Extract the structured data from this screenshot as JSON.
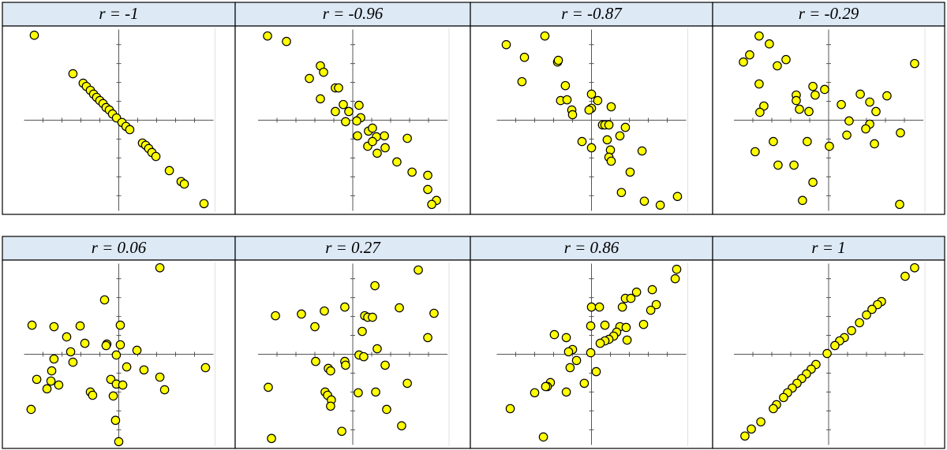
{
  "chart_data": [
    {
      "type": "scatter",
      "title": "r = -1",
      "color": "#ffff00",
      "xlim": [
        -5,
        5
      ],
      "ylim": [
        -4.8,
        4.8
      ],
      "xticks": [
        -4,
        -3,
        -2,
        -1,
        0,
        1,
        2,
        3,
        4
      ],
      "yticks": [
        -4,
        -3,
        -2,
        -1,
        0,
        1,
        2,
        3,
        4
      ],
      "x": [
        -4.46,
        -2.42,
        -1.88,
        -1.71,
        -1.5,
        -1.33,
        -1.17,
        -1,
        -0.83,
        -0.67,
        -0.5,
        -0.33,
        -0.12,
        0.17,
        0.38,
        0.58,
        1.25,
        1.42,
        1.58,
        1.75,
        1.96,
        2.67,
        3.29,
        3.46,
        4.5
      ],
      "y": [
        4.5,
        2.46,
        1.96,
        1.79,
        1.58,
        1.38,
        1.21,
        1.04,
        0.88,
        0.67,
        0.54,
        0.33,
        0.12,
        -0.12,
        -0.33,
        -0.5,
        -1.21,
        -1.33,
        -1.5,
        -1.71,
        -1.92,
        -2.67,
        -3.25,
        -3.38,
        -4.42
      ]
    },
    {
      "type": "scatter",
      "title": "r = -0.96",
      "color": "#ffff00",
      "xlim": [
        -5,
        5
      ],
      "ylim": [
        -4.8,
        4.8
      ],
      "xticks": [
        -4,
        -3,
        -2,
        -1,
        0,
        1,
        2,
        3,
        4
      ],
      "yticks": [
        -4,
        -3,
        -2,
        -1,
        0,
        1,
        2,
        3,
        4
      ],
      "x": [
        -4.5,
        -3.5,
        -2.29,
        -1.71,
        -1.54,
        -0.92,
        -0.75,
        -1.71,
        -0.5,
        -0.92,
        -0.21,
        0.33,
        0.42,
        -0.38,
        0.21,
        0.83,
        1.04,
        1.25,
        1.67,
        0.79,
        1.71,
        1.29,
        0.25,
        2.88,
        2.33,
        3.13,
        3.96,
        3.96,
        4.42,
        4.17,
        1.04
      ],
      "y": [
        4.46,
        4.17,
        2.21,
        2.88,
        2.54,
        1.71,
        1.71,
        1.13,
        0.83,
        0.46,
        0.46,
        0.79,
        0.13,
        -0.08,
        -0.04,
        -0.58,
        -0.42,
        -0.88,
        -0.83,
        -1.38,
        -1.46,
        -1.75,
        -0.83,
        -0.96,
        -2.21,
        -2.75,
        -2.92,
        -3.67,
        -4.25,
        -4.46,
        -1.13
      ]
    },
    {
      "type": "scatter",
      "title": "r = -0.87",
      "color": "#ffff00",
      "xlim": [
        -5,
        5
      ],
      "ylim": [
        -4.8,
        4.8
      ],
      "xticks": [
        -4,
        -3,
        -2,
        -1,
        0,
        1,
        2,
        3,
        4
      ],
      "yticks": [
        -4,
        -3,
        -2,
        -1,
        0,
        1,
        2,
        3,
        4
      ],
      "x": [
        -4.5,
        -3.54,
        -2.46,
        -1.79,
        -1.75,
        -3.67,
        -1.38,
        -1.63,
        -1.29,
        -1.04,
        -1,
        0,
        0.33,
        0,
        1.04,
        0.58,
        0.71,
        0.92,
        1.79,
        1.5,
        0.83,
        -0.5,
        0,
        1,
        0.92,
        1.04,
        2.67,
        2.04,
        1.58,
        2.79,
        3.63,
        4.54,
        -0.13
      ],
      "y": [
        4,
        3.33,
        4.46,
        3.08,
        3.17,
        2.04,
        1.83,
        1.04,
        1.08,
        0.54,
        0.29,
        1.38,
        1.04,
        0.63,
        0.71,
        -0.25,
        -0.25,
        -0.25,
        -0.38,
        -0.83,
        -1.04,
        -1.13,
        -1.46,
        -1.58,
        -1.96,
        -2.17,
        -1.63,
        -2.75,
        -3.83,
        -4.29,
        -4.5,
        -4.04,
        0.54
      ]
    },
    {
      "type": "scatter",
      "title": "r = -0.29",
      "color": "#ffff00",
      "xlim": [
        -5,
        5
      ],
      "ylim": [
        -4.8,
        4.8
      ],
      "xticks": [
        -4,
        -3,
        -2,
        -1,
        0,
        1,
        2,
        3,
        4
      ],
      "yticks": [
        -4,
        -3,
        -2,
        -1,
        0,
        1,
        2,
        3,
        4
      ],
      "x": [
        -3.67,
        -3.13,
        -4.17,
        -4.5,
        -2.25,
        -2.71,
        -3.67,
        -0.83,
        -0.21,
        -1.71,
        -1.71,
        -0.71,
        -3.42,
        -3.63,
        -1.54,
        -1.04,
        0.67,
        1.67,
        2.17,
        3.08,
        4.54,
        2.5,
        1.08,
        2.17,
        1.96,
        0.96,
        -1.13,
        0.04,
        -2.92,
        -3.88,
        2.42,
        -2.67,
        -1.83,
        -0.83,
        -1.38,
        3.79,
        3.75
      ],
      "y": [
        4.46,
        4.04,
        3.46,
        3.08,
        3.21,
        2.88,
        1.92,
        1.79,
        1.63,
        1.33,
        1.04,
        1.33,
        0.75,
        0.42,
        0.58,
        0.46,
        0.83,
        1.38,
        0.96,
        1.29,
        3,
        0.46,
        -0.04,
        -0.21,
        -0.46,
        -0.79,
        -1.13,
        -1.38,
        -1.13,
        -1.67,
        -1.25,
        -2.38,
        -2.38,
        -3.29,
        -4.25,
        -0.67,
        -4.46
      ]
    },
    {
      "type": "scatter",
      "title": "r = 0.06",
      "color": "#ffff00",
      "xlim": [
        -5,
        5
      ],
      "ylim": [
        -4.8,
        4.8
      ],
      "xticks": [
        -4,
        -3,
        -2,
        -1,
        0,
        1,
        2,
        3,
        4
      ],
      "yticks": [
        -4,
        -3,
        -2,
        -1,
        0,
        1,
        2,
        3,
        4
      ],
      "x": [
        2.17,
        -0.75,
        -4.58,
        -3.42,
        -2.75,
        -2.04,
        0.08,
        -0.63,
        -0.67,
        0.08,
        0.96,
        -1.79,
        -2.54,
        -3.42,
        -2.42,
        -0.13,
        -3.54,
        -4.33,
        -3.79,
        -3.58,
        -3.17,
        0.42,
        1.33,
        2.17,
        4.58,
        -0.42,
        -0.13,
        0.21,
        -1.5,
        -1.38,
        -0.29,
        2.42,
        -4.63,
        -0.17,
        0
      ],
      "y": [
        4.58,
        2.88,
        1.54,
        1.46,
        0.92,
        1.5,
        1.54,
        0.54,
        0.46,
        0.5,
        0.21,
        0.58,
        0.13,
        -0.25,
        -0.42,
        -0.04,
        -0.88,
        -1.33,
        -1.83,
        -1.42,
        -1.63,
        -0.67,
        -0.83,
        -1.21,
        -0.71,
        -1.33,
        -1.58,
        -1.63,
        -2,
        -2.17,
        -2.21,
        -1.88,
        -2.92,
        -3.5,
        -4.63
      ]
    },
    {
      "type": "scatter",
      "title": "r = 0.27",
      "color": "#ffff00",
      "xlim": [
        -5,
        5
      ],
      "ylim": [
        -4.8,
        4.8
      ],
      "xticks": [
        -4,
        -3,
        -2,
        -1,
        0,
        1,
        2,
        3,
        4
      ],
      "yticks": [
        -4,
        -3,
        -2,
        -1,
        0,
        1,
        2,
        3,
        4
      ],
      "x": [
        3.46,
        1.17,
        -0.42,
        -4.08,
        -2.71,
        -1.5,
        -2,
        0.63,
        0.79,
        1.04,
        2.46,
        4.29,
        0.5,
        3.96,
        1.29,
        0.33,
        -1.96,
        -0.42,
        -0.38,
        -1.29,
        -1.17,
        0.58,
        1.71,
        -4.46,
        2.88,
        -1.46,
        -1.33,
        0.29,
        1.21,
        -1.13,
        -1.17,
        1.79,
        2.58,
        -0.58,
        -4.29
      ],
      "y": [
        4.46,
        3.63,
        2.5,
        2.04,
        2.13,
        2.29,
        1.46,
        2.04,
        1.96,
        1.96,
        2.46,
        2.17,
        1.21,
        0.88,
        0.29,
        -0.04,
        -0.38,
        -0.38,
        -0.58,
        -0.75,
        -0.88,
        -0.13,
        -0.58,
        -1.75,
        -1.54,
        -2,
        -2.17,
        -2.04,
        -2,
        -2.42,
        -2.75,
        -2.92,
        -3.79,
        -4.08,
        -4.46
      ]
    },
    {
      "type": "scatter",
      "title": "r = 0.86",
      "color": "#ffff00",
      "xlim": [
        -5,
        5
      ],
      "ylim": [
        -4.8,
        4.8
      ],
      "xticks": [
        -4,
        -3,
        -2,
        -1,
        0,
        1,
        2,
        3,
        4
      ],
      "yticks": [
        -4,
        -3,
        -2,
        -1,
        0,
        1,
        2,
        3,
        4
      ],
      "x": [
        4.5,
        4.42,
        1.79,
        2.08,
        2.38,
        3.21,
        3.42,
        0,
        0.42,
        1.63,
        3.13,
        2.75,
        1.5,
        -0.04,
        0.71,
        1.83,
        1.33,
        1.17,
        0.92,
        0.71,
        0.46,
        -1.33,
        -1.96,
        1.88,
        -1,
        -1.21,
        -0.04,
        -0.79,
        -1.13,
        0.25,
        -0.38,
        -2.17,
        -2.33,
        -2.42,
        -3,
        -1.33,
        -4.29,
        -2.54
      ],
      "y": [
        4.5,
        4,
        2.96,
        2.96,
        3.29,
        3.42,
        2.63,
        2.5,
        2.5,
        2.5,
        2.33,
        1.58,
        1.46,
        1.5,
        1.54,
        1.42,
        1.17,
        0.96,
        0.79,
        0.71,
        0.58,
        0.88,
        1.04,
        0.75,
        0.25,
        0.13,
        0.08,
        -0.33,
        -0.71,
        -0.92,
        -1.54,
        -1.5,
        -1.71,
        -1.71,
        -2.04,
        -2,
        -2.88,
        -4.38
      ]
    },
    {
      "type": "scatter",
      "title": "r = 1",
      "color": "#ffff00",
      "xlim": [
        -5,
        5
      ],
      "ylim": [
        -4.8,
        4.8
      ],
      "xticks": [
        -4,
        -3,
        -2,
        -1,
        0,
        1,
        2,
        3,
        4
      ],
      "yticks": [
        -4,
        -3,
        -2,
        -1,
        0,
        1,
        2,
        3,
        4
      ],
      "x": [
        4.54,
        4.04,
        2.79,
        2.58,
        2.29,
        2,
        1.63,
        1.21,
        0.83,
        0.58,
        0.33,
        -0.08,
        -0.67,
        -0.92,
        -1.17,
        -1.42,
        -1.67,
        -1.92,
        -2.17,
        -2.38,
        -2.75,
        -2.92,
        -3.58,
        -4.08,
        -4.42
      ],
      "y": [
        4.58,
        4.13,
        2.79,
        2.63,
        2.38,
        2.08,
        1.67,
        1.25,
        0.88,
        0.71,
        0.46,
        0.04,
        -0.54,
        -0.79,
        -1.04,
        -1.29,
        -1.54,
        -1.79,
        -2.04,
        -2.29,
        -2.67,
        -2.88,
        -3.58,
        -3.96,
        -4.33
      ]
    }
  ]
}
